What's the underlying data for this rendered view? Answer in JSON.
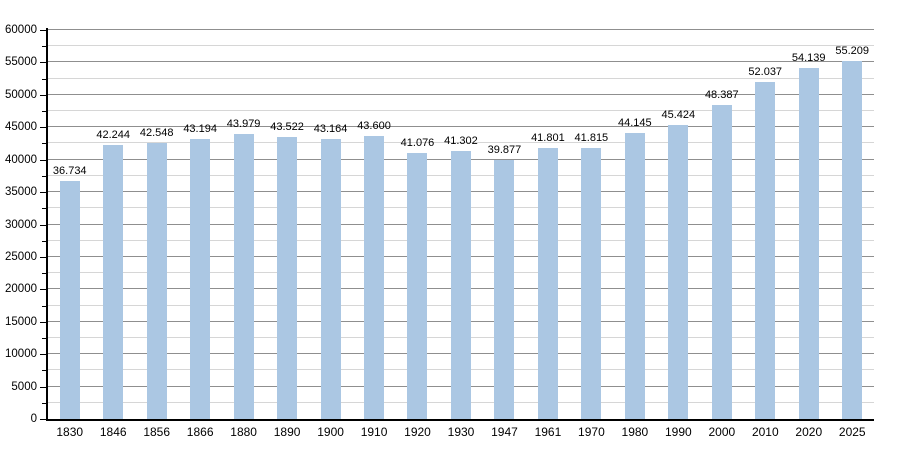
{
  "chart_data": {
    "type": "bar",
    "title": "",
    "xlabel": "",
    "ylabel": "",
    "categories": [
      "1830",
      "1846",
      "1856",
      "1866",
      "1880",
      "1890",
      "1900",
      "1910",
      "1920",
      "1930",
      "1947",
      "1961",
      "1970",
      "1980",
      "1990",
      "2000",
      "2010",
      "2020",
      "2025"
    ],
    "values": [
      36734,
      42244,
      42548,
      43194,
      43979,
      43522,
      43164,
      43600,
      41076,
      41302,
      39877,
      41801,
      41815,
      44145,
      45424,
      48387,
      52037,
      54139,
      55209
    ],
    "value_labels": [
      "36.734",
      "42.244",
      "42.548",
      "43.194",
      "43.979",
      "43.522",
      "43.164",
      "43.600",
      "41.076",
      "41.302",
      "39.877",
      "41.801",
      "41.815",
      "44.145",
      "45.424",
      "48.387",
      "52.037",
      "54.139",
      "55.209"
    ],
    "ylim": [
      0,
      60000
    ],
    "y_major_step": 5000,
    "y_minor_step": 2500,
    "y_tick_labels": [
      "0",
      "5000",
      "10000",
      "15000",
      "20000",
      "25000",
      "30000",
      "35000",
      "40000",
      "45000",
      "50000",
      "55000",
      "60000"
    ],
    "grid": true,
    "legend": "none",
    "colors": {
      "bar_fill": "#abc7e3",
      "grid_major": "#8f8f8f",
      "grid_minor": "#d6d6d6",
      "axis": "#000000",
      "text": "#000000",
      "background": "#ffffff"
    }
  }
}
